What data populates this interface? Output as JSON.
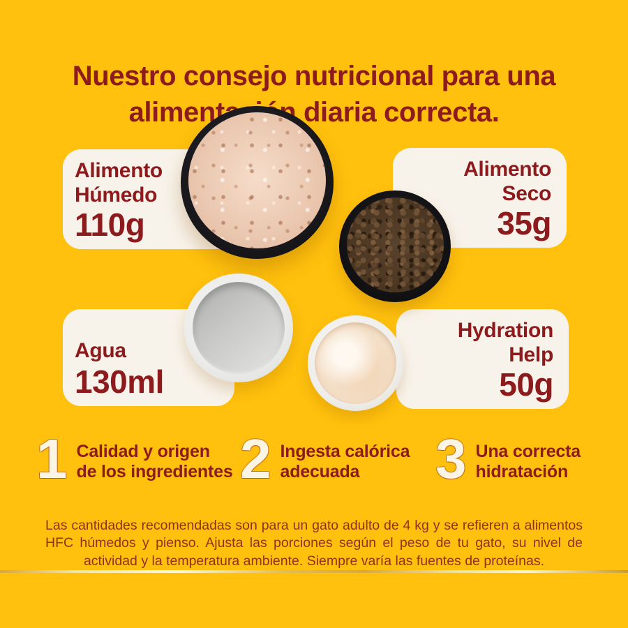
{
  "colors": {
    "background": "#FFC10D",
    "heading_red": "#8D1B1D",
    "card_background": "#F8F3EA",
    "footnote_red": "#94301F",
    "gold_divider": "#E3BD58",
    "tip_number_fill": "#FCF5E4"
  },
  "header": {
    "title_line1": "Nuestro consejo nutricional para una",
    "title_line2": "alimentación diaria correcta."
  },
  "portions": [
    {
      "label": "Alimento\nHúmedo",
      "amount": "110g",
      "image": "black-bowl-with-wet-cat-food"
    },
    {
      "label": "Alimento\nSeco",
      "amount": "35g",
      "image": "black-bowl-with-dry-kibble"
    },
    {
      "label": "Agua",
      "amount": "130ml",
      "image": "white-bowl-with-water"
    },
    {
      "label": "Hydration\nHelp",
      "amount": "50g",
      "image": "white-bowl-with-hydration-help-broth"
    }
  ],
  "tips": [
    {
      "number": "1",
      "text": "Calidad y origen\nde los ingredientes"
    },
    {
      "number": "2",
      "text": "Ingesta calórica\nadecuada"
    },
    {
      "number": "3",
      "text": "Una correcta\nhidratación"
    }
  ],
  "footnote": {
    "text": "Las cantidades recomendadas son para un gato adulto de 4 kg y se refieren a alimentos HFC húmedos y pienso. Ajusta las porciones según el peso de tu gato, su nivel de actividad y la temperatura ambiente. Siempre varía las fuentes de proteínas."
  }
}
